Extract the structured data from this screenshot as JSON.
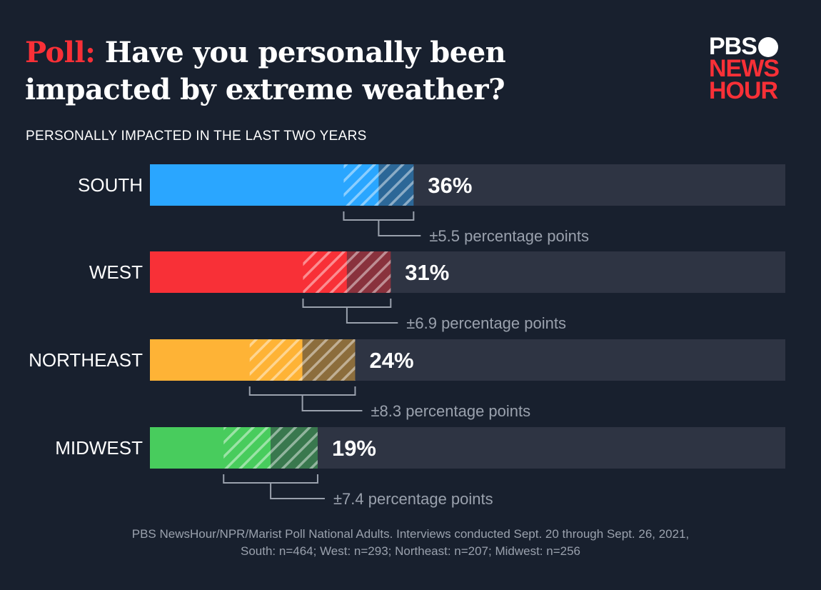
{
  "title": {
    "kicker": "Poll:",
    "text": "Have you personally been impacted by extreme weather?"
  },
  "logo": {
    "line1": "PBS",
    "line2": "NEWS",
    "line3": "HOUR"
  },
  "chart_data": {
    "type": "bar",
    "orientation": "horizontal",
    "title": "PERSONALLY IMPACTED IN THE LAST TWO YEARS",
    "xlim": [
      0,
      100
    ],
    "categories": [
      "SOUTH",
      "WEST",
      "NORTHEAST",
      "MIDWEST"
    ],
    "values": [
      36,
      31,
      24,
      19
    ],
    "value_labels": [
      "36%",
      "31%",
      "24%",
      "19%"
    ],
    "margin_of_error": [
      5.5,
      6.9,
      8.3,
      7.4
    ],
    "moe_labels": [
      "±5.5 percentage points",
      "±6.9 percentage points",
      "±8.3 percentage points",
      "±7.4 percentage points"
    ],
    "colors": [
      "#2aa6ff",
      "#f83037",
      "#feb336",
      "#48cc5d"
    ],
    "track_color": "#2e3443"
  },
  "footnote": {
    "line1": "PBS NewsHour/NPR/Marist Poll National Adults. Interviews conducted Sept. 20 through Sept. 26, 2021,",
    "line2": "South: n=464; West: n=293; Northeast: n=207; Midwest: n=256"
  }
}
